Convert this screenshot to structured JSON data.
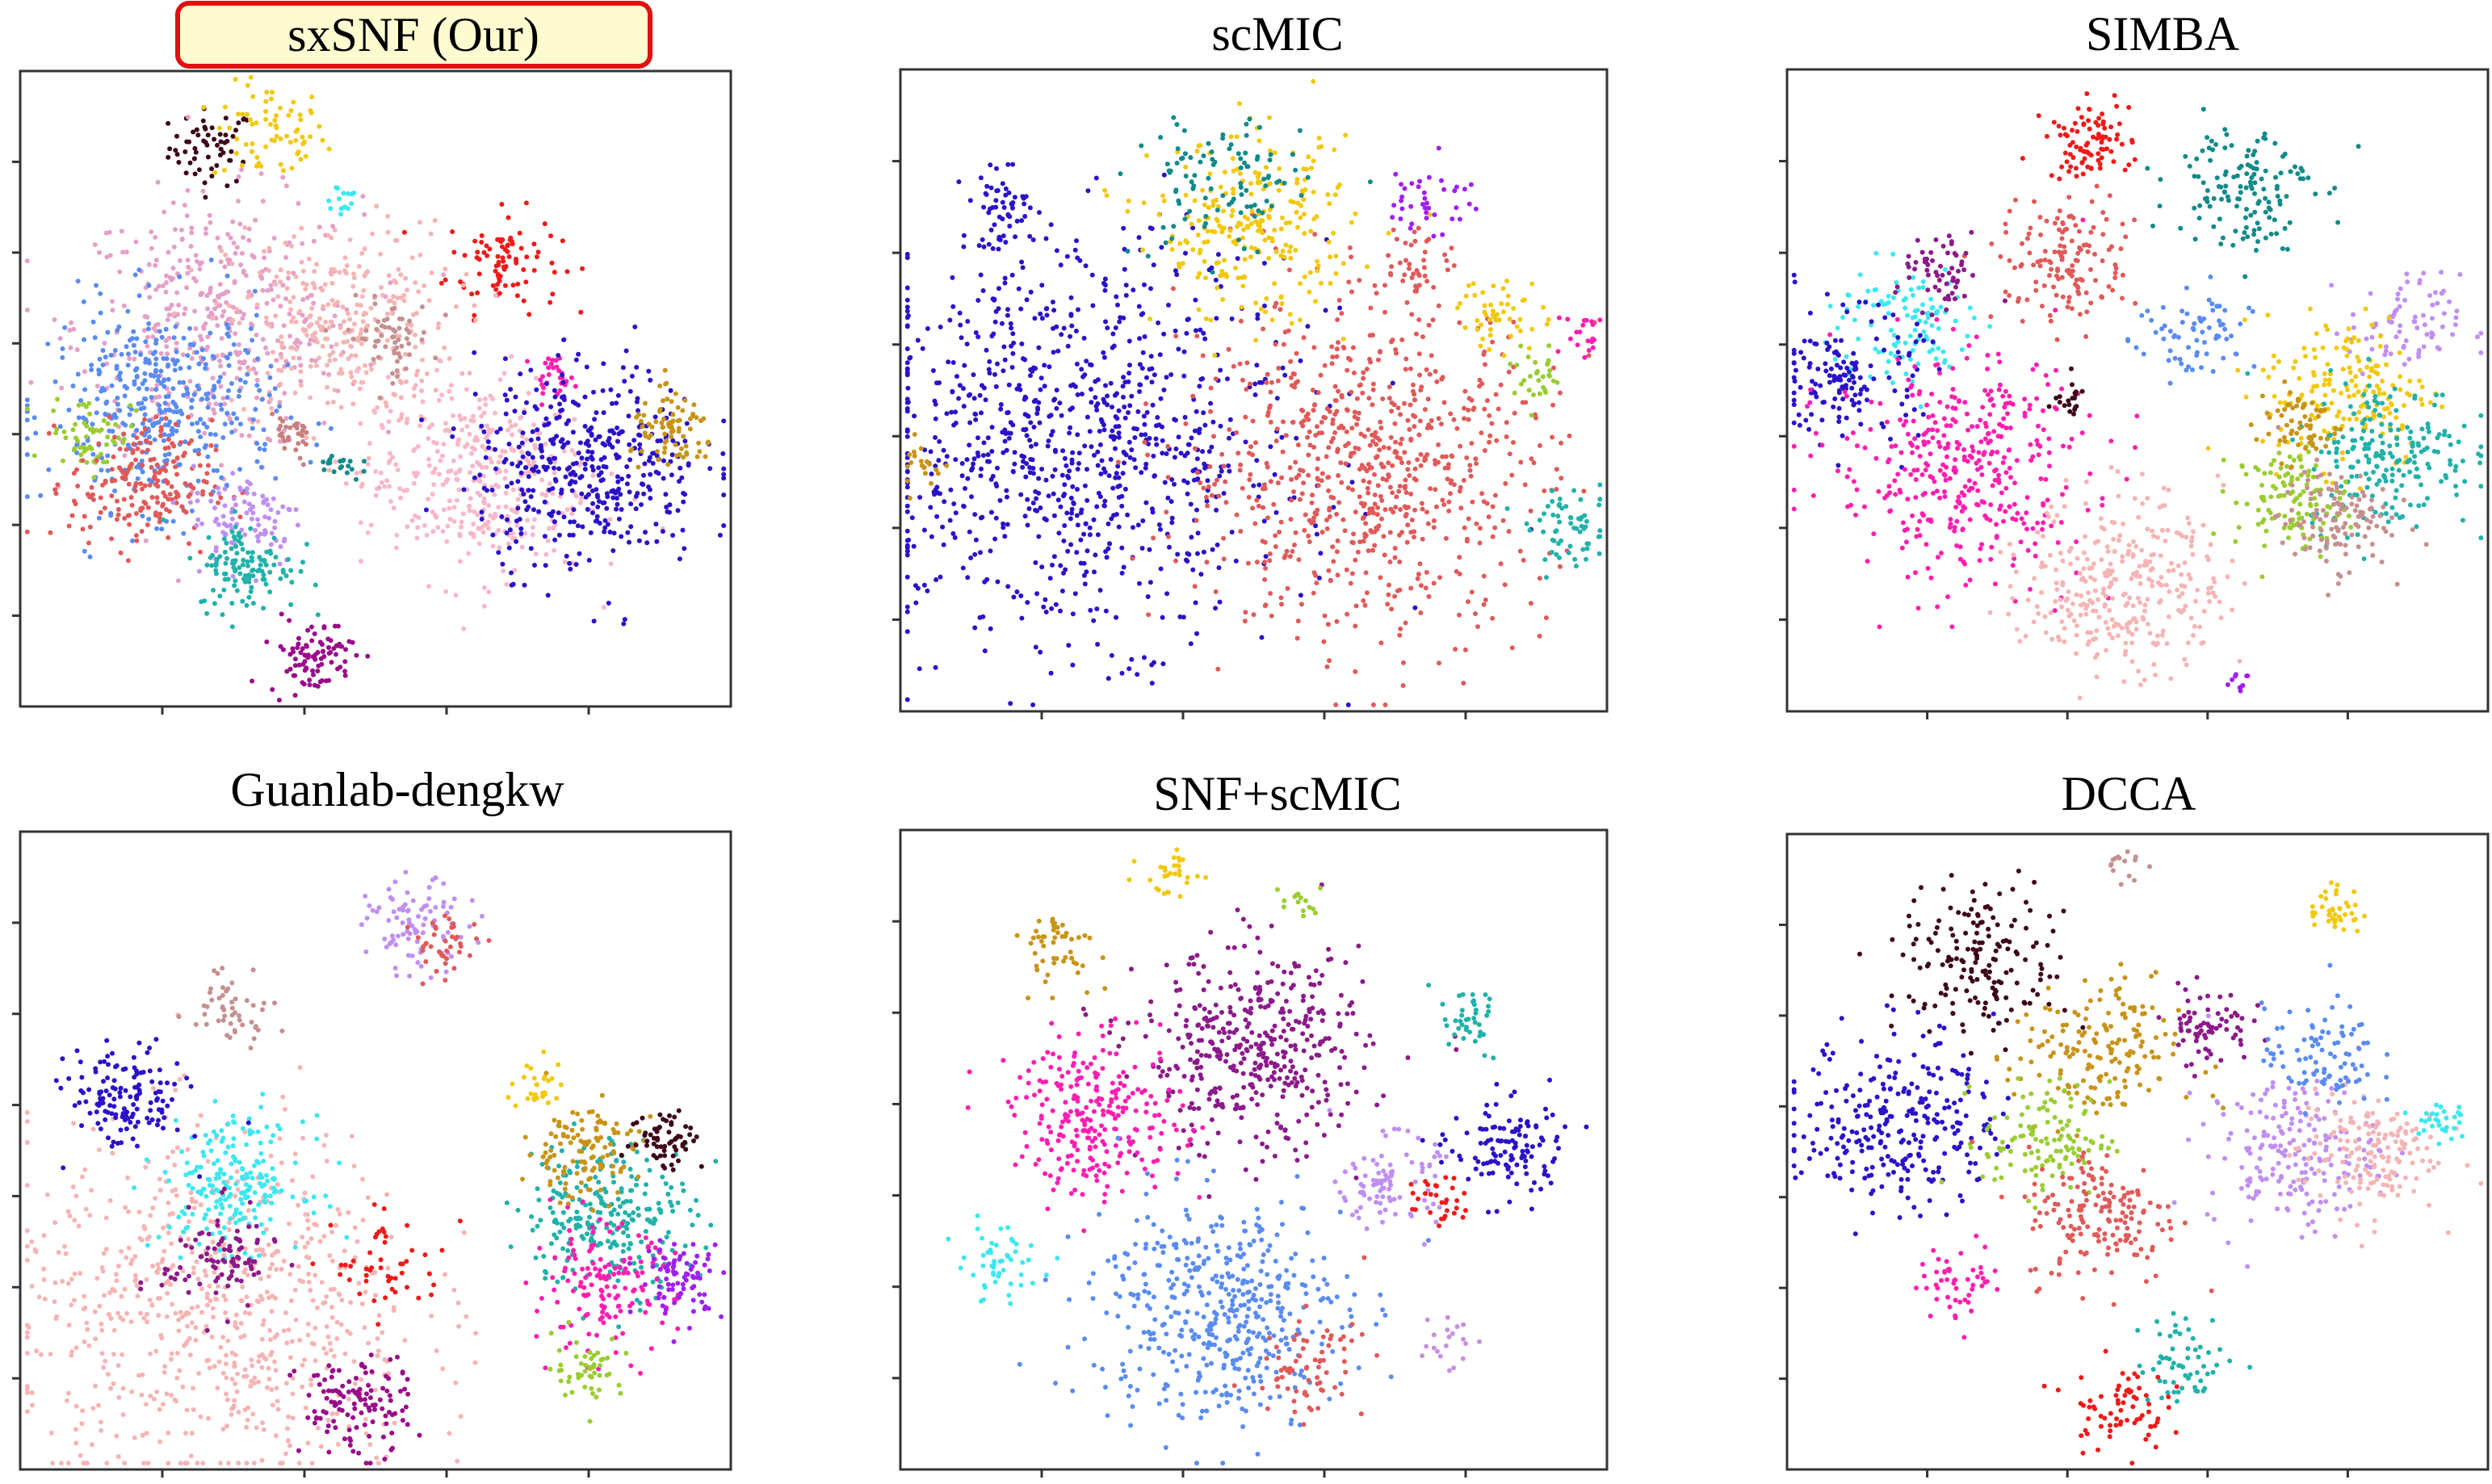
{
  "figure": {
    "panels": [
      {
        "title": "sxSNF (Our)",
        "highlight": true
      },
      {
        "title": "scMIC",
        "highlight": false
      },
      {
        "title": "SIMBA",
        "highlight": false
      },
      {
        "title": "Guanlab-dengkw",
        "highlight": false
      },
      {
        "title": "SNF+scMIC",
        "highlight": false
      },
      {
        "title": "DCCA",
        "highlight": false
      }
    ]
  },
  "chart_data": [
    {
      "type": "scatter",
      "title": "sxSNF (Our)",
      "xlim": [
        0,
        100
      ],
      "ylim": [
        0,
        100
      ],
      "clusters": [
        {
          "color": "#3c0618",
          "x": 27,
          "y": 88,
          "spread": 3,
          "n": 60
        },
        {
          "color": "#f2c80c",
          "x": 35,
          "y": 90,
          "spread": 4,
          "n": 70
        },
        {
          "color": "#3de8f0",
          "x": 45,
          "y": 80,
          "spread": 1.5,
          "n": 15
        },
        {
          "color": "#f01a1a",
          "x": 68,
          "y": 70,
          "spread": 4,
          "n": 90
        },
        {
          "color": "#e4a0c8",
          "x": 28,
          "y": 60,
          "spread": 10,
          "n": 420
        },
        {
          "color": "#f5b5b5",
          "x": 45,
          "y": 60,
          "spread": 8,
          "n": 300
        },
        {
          "color": "#c69090",
          "x": 52,
          "y": 58,
          "spread": 3,
          "n": 60
        },
        {
          "color": "#5a8cf0",
          "x": 20,
          "y": 47,
          "spread": 8,
          "n": 400
        },
        {
          "color": "#9acd32",
          "x": 10,
          "y": 43,
          "spread": 3,
          "n": 60
        },
        {
          "color": "#e05a5a",
          "x": 17,
          "y": 35,
          "spread": 5,
          "n": 200
        },
        {
          "color": "#c08ff0",
          "x": 32,
          "y": 30,
          "spread": 4,
          "n": 90
        },
        {
          "color": "#20b2aa",
          "x": 32,
          "y": 22,
          "spread": 3.5,
          "n": 120
        },
        {
          "color": "#9a0a8a",
          "x": 41,
          "y": 8,
          "spread": 3,
          "n": 90
        },
        {
          "color": "#ff1fb0",
          "x": 75,
          "y": 52,
          "spread": 1.5,
          "n": 30
        },
        {
          "color": "#f8b8c8",
          "x": 64,
          "y": 36,
          "spread": 8,
          "n": 380
        },
        {
          "color": "#2a12c8",
          "x": 80,
          "y": 38,
          "spread": 8,
          "n": 420
        },
        {
          "color": "#c89418",
          "x": 92,
          "y": 43,
          "spread": 3,
          "n": 80
        },
        {
          "color": "#c88080",
          "x": 38,
          "y": 42,
          "spread": 2,
          "n": 30
        },
        {
          "color": "#108a8a",
          "x": 45,
          "y": 38,
          "spread": 1.5,
          "n": 20
        }
      ]
    },
    {
      "type": "scatter",
      "title": "scMIC",
      "xlim": [
        0,
        100
      ],
      "ylim": [
        0,
        100
      ],
      "clusters": [
        {
          "color": "#2a12c8",
          "x": 25,
          "y": 42,
          "spread": 15,
          "n": 900
        },
        {
          "color": "#e05a5a",
          "x": 66,
          "y": 38,
          "spread": 13,
          "n": 750
        },
        {
          "color": "#f2c80c",
          "x": 50,
          "y": 75,
          "spread": 7,
          "n": 250
        },
        {
          "color": "#108a8a",
          "x": 45,
          "y": 82,
          "spread": 6,
          "n": 100
        },
        {
          "color": "#2a12c8",
          "x": 15,
          "y": 78,
          "spread": 3,
          "n": 60
        },
        {
          "color": "#f2c80c",
          "x": 85,
          "y": 62,
          "spread": 3,
          "n": 50
        },
        {
          "color": "#e05a5a",
          "x": 73,
          "y": 70,
          "spread": 3,
          "n": 40
        },
        {
          "color": "#a020f0",
          "x": 75,
          "y": 80,
          "spread": 3,
          "n": 40
        },
        {
          "color": "#20b2aa",
          "x": 95,
          "y": 28,
          "spread": 3,
          "n": 60
        },
        {
          "color": "#9acd32",
          "x": 90,
          "y": 52,
          "spread": 2,
          "n": 30
        },
        {
          "color": "#ff1fb0",
          "x": 97,
          "y": 58,
          "spread": 2,
          "n": 20
        },
        {
          "color": "#c89418",
          "x": 3,
          "y": 38,
          "spread": 2,
          "n": 20
        }
      ]
    },
    {
      "type": "scatter",
      "title": "SIMBA",
      "xlim": [
        0,
        100
      ],
      "ylim": [
        0,
        100
      ],
      "clusters": [
        {
          "color": "#f01a1a",
          "x": 43,
          "y": 89,
          "spread": 3,
          "n": 90
        },
        {
          "color": "#108a8a",
          "x": 65,
          "y": 82,
          "spread": 5,
          "n": 140
        },
        {
          "color": "#3de8f0",
          "x": 16,
          "y": 60,
          "spread": 5,
          "n": 110
        },
        {
          "color": "#2a12c8",
          "x": 9,
          "y": 52,
          "spread": 5,
          "n": 150
        },
        {
          "color": "#ff1fb0",
          "x": 25,
          "y": 38,
          "spread": 9,
          "n": 400
        },
        {
          "color": "#f5b5b5",
          "x": 48,
          "y": 20,
          "spread": 7,
          "n": 320
        },
        {
          "color": "#e05a5a",
          "x": 40,
          "y": 70,
          "spread": 5,
          "n": 140
        },
        {
          "color": "#8b1a8a",
          "x": 22,
          "y": 68,
          "spread": 3,
          "n": 60
        },
        {
          "color": "#5a8cf0",
          "x": 58,
          "y": 58,
          "spread": 4,
          "n": 70
        },
        {
          "color": "#c08ff0",
          "x": 88,
          "y": 60,
          "spread": 4,
          "n": 80
        },
        {
          "color": "#f2c80c",
          "x": 80,
          "y": 50,
          "spread": 6,
          "n": 180
        },
        {
          "color": "#20b2aa",
          "x": 86,
          "y": 40,
          "spread": 6,
          "n": 200
        },
        {
          "color": "#9acd32",
          "x": 72,
          "y": 33,
          "spread": 4,
          "n": 120
        },
        {
          "color": "#c69090",
          "x": 78,
          "y": 30,
          "spread": 4,
          "n": 120
        },
        {
          "color": "#c89418",
          "x": 73,
          "y": 45,
          "spread": 3,
          "n": 60
        },
        {
          "color": "#3c0618",
          "x": 40,
          "y": 48,
          "spread": 1.5,
          "n": 20
        },
        {
          "color": "#a020f0",
          "x": 64,
          "y": 5,
          "spread": 1,
          "n": 10
        }
      ]
    },
    {
      "type": "scatter",
      "title": "Guanlab-dengkw",
      "xlim": [
        0,
        100
      ],
      "ylim": [
        0,
        100
      ],
      "clusters": [
        {
          "color": "#f5b5b5",
          "x": 28,
          "y": 25,
          "spread": 14,
          "n": 700
        },
        {
          "color": "#3de8f0",
          "x": 30,
          "y": 45,
          "spread": 5,
          "n": 200
        },
        {
          "color": "#2a12c8",
          "x": 15,
          "y": 58,
          "spread": 4,
          "n": 140
        },
        {
          "color": "#8b1a8a",
          "x": 28,
          "y": 33,
          "spread": 4,
          "n": 90
        },
        {
          "color": "#9a0a8a",
          "x": 47,
          "y": 10,
          "spread": 4,
          "n": 120
        },
        {
          "color": "#c08ff0",
          "x": 56,
          "y": 85,
          "spread": 3.5,
          "n": 90
        },
        {
          "color": "#c69090",
          "x": 30,
          "y": 73,
          "spread": 3,
          "n": 50
        },
        {
          "color": "#e05a5a",
          "x": 60,
          "y": 82,
          "spread": 2.5,
          "n": 40
        },
        {
          "color": "#20b2aa",
          "x": 83,
          "y": 40,
          "spread": 6,
          "n": 260
        },
        {
          "color": "#c89418",
          "x": 79,
          "y": 50,
          "spread": 4,
          "n": 120
        },
        {
          "color": "#ff1fb0",
          "x": 82,
          "y": 28,
          "spread": 5,
          "n": 150
        },
        {
          "color": "#a020f0",
          "x": 93,
          "y": 30,
          "spread": 3,
          "n": 80
        },
        {
          "color": "#3c0618",
          "x": 91,
          "y": 52,
          "spread": 2.5,
          "n": 60
        },
        {
          "color": "#9acd32",
          "x": 80,
          "y": 16,
          "spread": 2.5,
          "n": 50
        },
        {
          "color": "#f2c80c",
          "x": 73,
          "y": 60,
          "spread": 2,
          "n": 30
        },
        {
          "color": "#f01a1a",
          "x": 52,
          "y": 32,
          "spread": 4,
          "n": 50
        }
      ]
    },
    {
      "type": "scatter",
      "title": "SNF+scMIC",
      "xlim": [
        0,
        100
      ],
      "ylim": [
        0,
        100
      ],
      "clusters": [
        {
          "color": "#8b1a8a",
          "x": 50,
          "y": 65,
          "spread": 8,
          "n": 420
        },
        {
          "color": "#ff1fb0",
          "x": 28,
          "y": 55,
          "spread": 6,
          "n": 260
        },
        {
          "color": "#5a8cf0",
          "x": 45,
          "y": 25,
          "spread": 9,
          "n": 450
        },
        {
          "color": "#c08ff0",
          "x": 69,
          "y": 45,
          "spread": 3.5,
          "n": 90
        },
        {
          "color": "#2a12c8",
          "x": 86,
          "y": 50,
          "spread": 4,
          "n": 120
        },
        {
          "color": "#e05a5a",
          "x": 58,
          "y": 16,
          "spread": 4,
          "n": 70
        },
        {
          "color": "#c89418",
          "x": 22,
          "y": 82,
          "spread": 3,
          "n": 50
        },
        {
          "color": "#f2c80c",
          "x": 38,
          "y": 93,
          "spread": 2,
          "n": 30
        },
        {
          "color": "#3de8f0",
          "x": 14,
          "y": 32,
          "spread": 3,
          "n": 50
        },
        {
          "color": "#20b2aa",
          "x": 80,
          "y": 70,
          "spread": 2.5,
          "n": 40
        },
        {
          "color": "#f01a1a",
          "x": 76,
          "y": 42,
          "spread": 2,
          "n": 30
        },
        {
          "color": "#9acd32",
          "x": 57,
          "y": 89,
          "spread": 1.5,
          "n": 15
        },
        {
          "color": "#c890e0",
          "x": 77,
          "y": 20,
          "spread": 2,
          "n": 20
        }
      ]
    },
    {
      "type": "scatter",
      "title": "DCCA",
      "xlim": [
        0,
        100
      ],
      "ylim": [
        0,
        100
      ],
      "clusters": [
        {
          "color": "#2a12c8",
          "x": 16,
          "y": 55,
          "spread": 7,
          "n": 280
        },
        {
          "color": "#3c0618",
          "x": 28,
          "y": 80,
          "spread": 6,
          "n": 170
        },
        {
          "color": "#c89418",
          "x": 44,
          "y": 65,
          "spread": 6,
          "n": 170
        },
        {
          "color": "#9acd32",
          "x": 37,
          "y": 52,
          "spread": 4.5,
          "n": 120
        },
        {
          "color": "#e05a5a",
          "x": 45,
          "y": 40,
          "spread": 5.5,
          "n": 170
        },
        {
          "color": "#8b1a8a",
          "x": 60,
          "y": 70,
          "spread": 3,
          "n": 70
        },
        {
          "color": "#c08ff0",
          "x": 72,
          "y": 50,
          "spread": 6,
          "n": 200
        },
        {
          "color": "#f5b5b5",
          "x": 83,
          "y": 50,
          "spread": 5,
          "n": 160
        },
        {
          "color": "#5a8cf0",
          "x": 76,
          "y": 65,
          "spread": 4,
          "n": 90
        },
        {
          "color": "#f2c80c",
          "x": 78,
          "y": 88,
          "spread": 2,
          "n": 40
        },
        {
          "color": "#ff1fb0",
          "x": 25,
          "y": 30,
          "spread": 3,
          "n": 50
        },
        {
          "color": "#20b2aa",
          "x": 57,
          "y": 17,
          "spread": 3.5,
          "n": 60
        },
        {
          "color": "#f01a1a",
          "x": 47,
          "y": 10,
          "spread": 3.5,
          "n": 70
        },
        {
          "color": "#c69090",
          "x": 48,
          "y": 95,
          "spread": 1.5,
          "n": 15
        },
        {
          "color": "#3de8f0",
          "x": 93,
          "y": 55,
          "spread": 2,
          "n": 30
        }
      ]
    }
  ]
}
